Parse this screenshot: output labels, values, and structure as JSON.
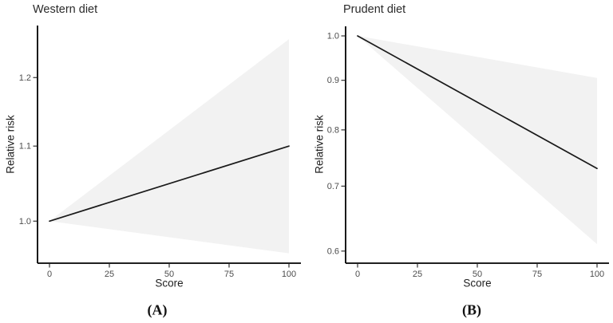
{
  "chart_data": [
    {
      "type": "line",
      "title": "Western diet",
      "panel_label": "(A)",
      "xlabel": "Score",
      "ylabel": "Relative risk",
      "y_scale": "log",
      "grid": false,
      "legend": "none",
      "x": [
        0,
        100
      ],
      "series": [
        {
          "name": "relative_risk",
          "values": [
            1.0,
            1.1
          ]
        },
        {
          "name": "ci_upper",
          "values": [
            1.0,
            1.26
          ]
        },
        {
          "name": "ci_lower",
          "values": [
            1.0,
            0.96
          ]
        }
      ],
      "x_ticks": {
        "values": [
          0,
          25,
          50,
          75,
          100
        ],
        "labels": [
          "0",
          "25",
          "50",
          "75",
          "100"
        ]
      },
      "y_ticks": {
        "values": [
          1.0,
          1.1,
          1.2
        ],
        "labels": [
          "1.0",
          "1.1",
          "1.2"
        ]
      },
      "xlim": [
        -5,
        105
      ],
      "ylim": [
        0.948,
        1.282
      ],
      "line_color": "#1a1a1a",
      "band_color": "#f2f2f2",
      "axis_color": "#000000",
      "tick_label_color": "#4d4d4d"
    },
    {
      "type": "line",
      "title": "Prudent diet",
      "panel_label": "(B)",
      "xlabel": "Score",
      "ylabel": "Relative risk",
      "y_scale": "log",
      "grid": false,
      "legend": "none",
      "x": [
        0,
        100
      ],
      "series": [
        {
          "name": "relative_risk",
          "values": [
            1.0,
            0.73
          ]
        },
        {
          "name": "ci_upper",
          "values": [
            1.0,
            0.905
          ]
        },
        {
          "name": "ci_lower",
          "values": [
            1.0,
            0.61
          ]
        }
      ],
      "x_ticks": {
        "values": [
          0,
          25,
          50,
          75,
          100
        ],
        "labels": [
          "0",
          "25",
          "50",
          "75",
          "100"
        ]
      },
      "y_ticks": {
        "values": [
          0.6,
          0.7,
          0.8,
          0.9,
          1.0
        ],
        "labels": [
          "0.6",
          "0.7",
          "0.8",
          "0.9",
          "1.0"
        ]
      },
      "xlim": [
        -5,
        105
      ],
      "ylim": [
        0.583,
        1.023
      ],
      "line_color": "#1a1a1a",
      "band_color": "#f2f2f2",
      "axis_color": "#000000",
      "tick_label_color": "#4d4d4d"
    }
  ]
}
